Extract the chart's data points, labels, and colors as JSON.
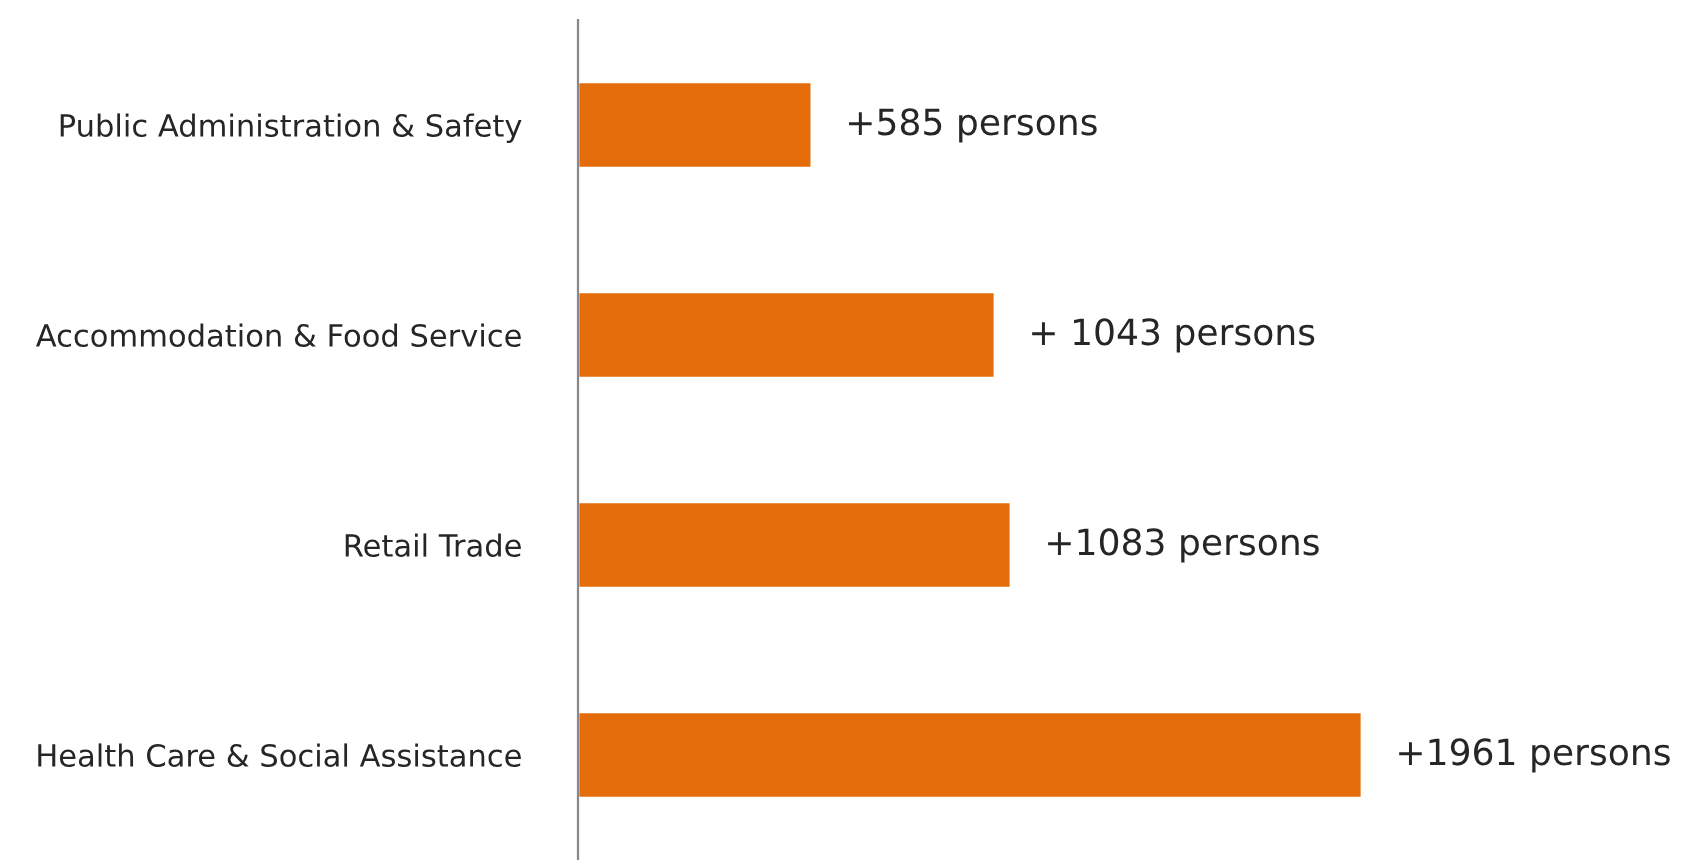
{
  "chart_data": {
    "type": "bar",
    "orientation": "horizontal",
    "categories": [
      "Public Administration & Safety",
      "Accommodation & Food Service",
      "Retail Trade",
      "Health Care & Social Assistance"
    ],
    "values": [
      585,
      1043,
      1083,
      1961
    ],
    "value_labels": [
      "+585 persons",
      "+ 1043 persons",
      "+1083 persons",
      "+1961 persons"
    ],
    "color": "#e46c0a",
    "grid": false,
    "legend": false
  }
}
